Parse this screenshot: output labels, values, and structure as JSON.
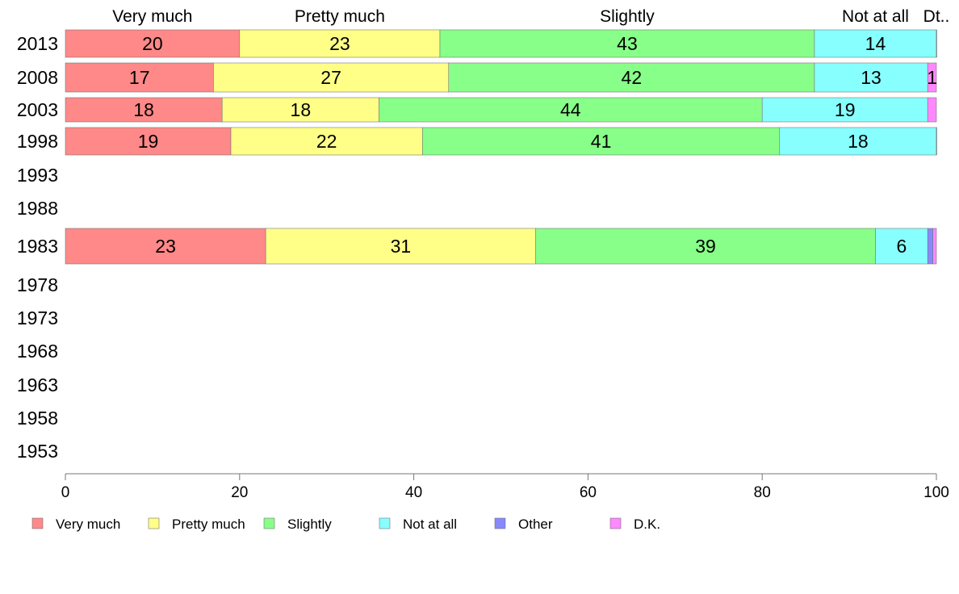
{
  "chart_data": {
    "type": "bar",
    "orientation": "horizontal",
    "stacked": true,
    "categories": [
      "2013",
      "2008",
      "2003",
      "1998",
      "1993",
      "1988",
      "1983",
      "1978",
      "1973",
      "1968",
      "1963",
      "1958",
      "1953"
    ],
    "series": [
      {
        "name": "Very much",
        "color": "#ff8888",
        "values": [
          20,
          17,
          18,
          19,
          null,
          null,
          23,
          null,
          null,
          null,
          null,
          null,
          null
        ]
      },
      {
        "name": "Pretty much",
        "color": "#ffff88",
        "values": [
          23,
          27,
          18,
          22,
          null,
          null,
          31,
          null,
          null,
          null,
          null,
          null,
          null
        ]
      },
      {
        "name": "Slightly",
        "color": "#88ff88",
        "values": [
          43,
          42,
          44,
          41,
          null,
          null,
          39,
          null,
          null,
          null,
          null,
          null,
          null
        ]
      },
      {
        "name": "Not at all",
        "color": "#88ffff",
        "values": [
          14,
          13,
          19,
          18,
          null,
          null,
          6,
          null,
          null,
          null,
          null,
          null,
          null
        ]
      },
      {
        "name": "Other",
        "color": "#8888ff",
        "values": [
          0,
          0,
          0,
          0,
          null,
          null,
          0.6,
          null,
          null,
          null,
          null,
          null,
          null
        ]
      },
      {
        "name": "D.K.",
        "color": "#ff88ff",
        "values": [
          0.2,
          0.8,
          0.2,
          0.2,
          null,
          null,
          0.5,
          null,
          null,
          null,
          null,
          null,
          null
        ]
      }
    ],
    "data_labels": [
      [
        "20",
        "23",
        "43",
        "14",
        "",
        ""
      ],
      [
        "17",
        "27",
        "42",
        "13",
        "",
        "1"
      ],
      [
        "18",
        "18",
        "44",
        "19",
        "",
        ""
      ],
      [
        "19",
        "22",
        "41",
        "18",
        "",
        ""
      ],
      null,
      null,
      [
        "23",
        "31",
        "39",
        "6",
        "",
        ""
      ],
      null,
      null,
      null,
      null,
      null,
      null
    ],
    "top_labels": [
      "Very much",
      "Pretty much",
      "Slightly",
      "Not at all",
      "Dt.."
    ],
    "xlim": [
      0,
      100
    ],
    "xticks": [
      "0",
      "20",
      "40",
      "60",
      "80",
      "100"
    ],
    "grid": false,
    "legend_position": "bottom",
    "legend": [
      "Very much",
      "Pretty much",
      "Slightly",
      "Not at all",
      "Other",
      "D.K."
    ]
  }
}
